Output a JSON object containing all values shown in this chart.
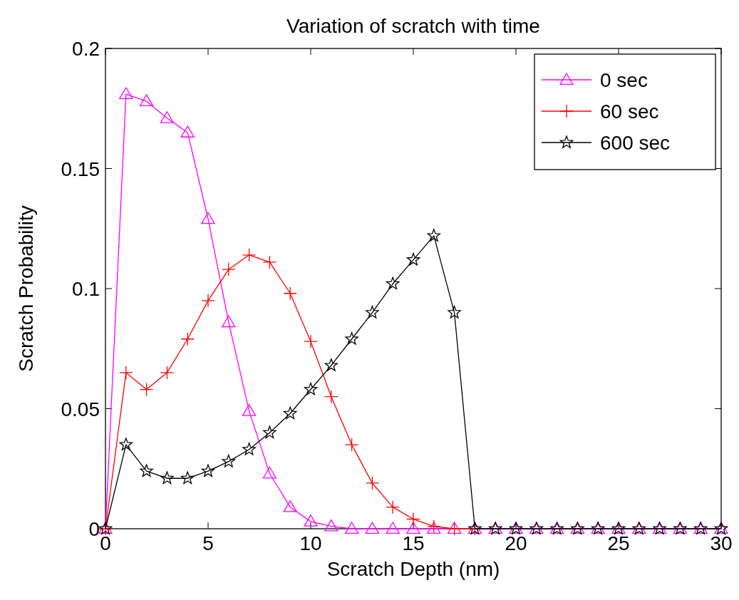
{
  "chart_data": {
    "type": "line",
    "title": "Variation of scratch with time",
    "xlabel": "Scratch Depth (nm)",
    "ylabel": "Scratch Probability",
    "x": [
      0,
      1,
      2,
      3,
      4,
      5,
      6,
      7,
      8,
      9,
      10,
      11,
      12,
      13,
      14,
      15,
      16,
      17,
      18,
      19,
      20,
      21,
      22,
      23,
      24,
      25,
      26,
      27,
      28,
      29,
      30
    ],
    "series": [
      {
        "name": "0 sec",
        "color": "#ff00ff",
        "marker": "triangle",
        "values": [
          0,
          0.181,
          0.178,
          0.171,
          0.165,
          0.129,
          0.086,
          0.049,
          0.023,
          0.009,
          0.003,
          0.001,
          0,
          0,
          0,
          0,
          0,
          0,
          0,
          0,
          0,
          0,
          0,
          0,
          0,
          0,
          0,
          0,
          0,
          0,
          0
        ]
      },
      {
        "name": "60 sec",
        "color": "#ff0000",
        "marker": "cross",
        "values": [
          0,
          0.065,
          0.058,
          0.065,
          0.079,
          0.095,
          0.108,
          0.114,
          0.111,
          0.098,
          0.078,
          0.055,
          0.035,
          0.019,
          0.009,
          0.004,
          0.001,
          0,
          0,
          null,
          null,
          null,
          null,
          null,
          null,
          null,
          null,
          null,
          null,
          null,
          null
        ]
      },
      {
        "name": "600 sec",
        "color": "#000000",
        "marker": "star",
        "values": [
          0,
          0.035,
          0.024,
          0.021,
          0.021,
          0.024,
          0.028,
          0.033,
          0.04,
          0.048,
          0.058,
          0.068,
          0.079,
          0.09,
          0.102,
          0.112,
          0.122,
          0.09,
          0,
          0,
          0,
          0,
          0,
          0,
          0,
          0,
          0,
          0,
          0,
          0,
          0
        ]
      }
    ],
    "xlim": [
      0,
      30
    ],
    "xticks": [
      0,
      5,
      10,
      15,
      20,
      25,
      30
    ],
    "ylim": [
      0,
      0.2
    ],
    "yticks": [
      0,
      0.05,
      0.1,
      0.15,
      0.2
    ],
    "grid": false,
    "legend": "top right",
    "line_style": "solid"
  }
}
